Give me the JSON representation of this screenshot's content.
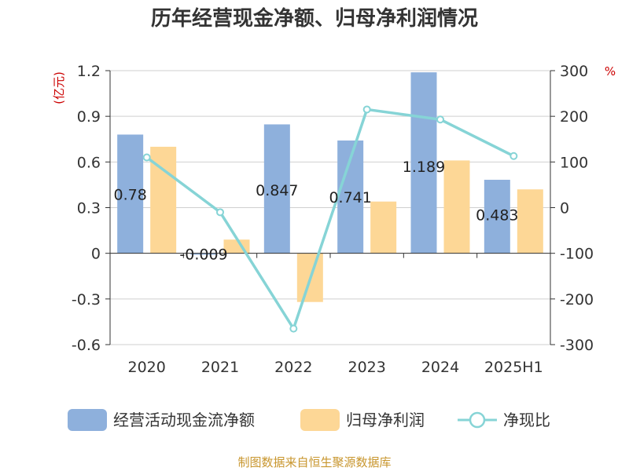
{
  "chart_data": {
    "type": "bar",
    "title": "历年经营现金净额、归母净利润情况",
    "categories": [
      "2020",
      "2021",
      "2022",
      "2023",
      "2024",
      "2025H1"
    ],
    "left_axis": {
      "unit": "(亿元)",
      "ylim": [
        -0.6,
        1.2
      ],
      "ticks": [
        -0.6,
        -0.3,
        0,
        0.3,
        0.6,
        0.9,
        1.2
      ],
      "tick_labels": [
        "-0.6",
        "-0.3",
        "0",
        "0.3",
        "0.6",
        "0.9",
        "1.2"
      ]
    },
    "right_axis": {
      "unit": "%",
      "ylim": [
        -300,
        300
      ],
      "ticks": [
        -300,
        -200,
        -100,
        0,
        100,
        200,
        300
      ],
      "tick_labels": [
        "-300",
        "-200",
        "-100",
        "0",
        "100",
        "200",
        "300"
      ]
    },
    "grid": true,
    "legend_position": "bottom",
    "series": [
      {
        "name": "经营活动现金流净额",
        "type": "bar",
        "axis": "left",
        "color": "#8eb0dc",
        "values": [
          0.78,
          -0.009,
          0.847,
          0.741,
          1.189,
          0.483
        ],
        "labels": [
          "0.78",
          "-0.009",
          "0.847",
          "0.741",
          "1.189",
          "0.483"
        ]
      },
      {
        "name": "归母净利润",
        "type": "bar",
        "axis": "left",
        "color": "#fdd796",
        "values": [
          0.7,
          0.09,
          -0.32,
          0.34,
          0.61,
          0.42
        ]
      },
      {
        "name": "净现比",
        "type": "line",
        "axis": "right",
        "color": "#86d4d6",
        "values": [
          110,
          -10,
          -265,
          215,
          193,
          113
        ]
      }
    ],
    "source": "制图数据来自恒生聚源数据库"
  }
}
